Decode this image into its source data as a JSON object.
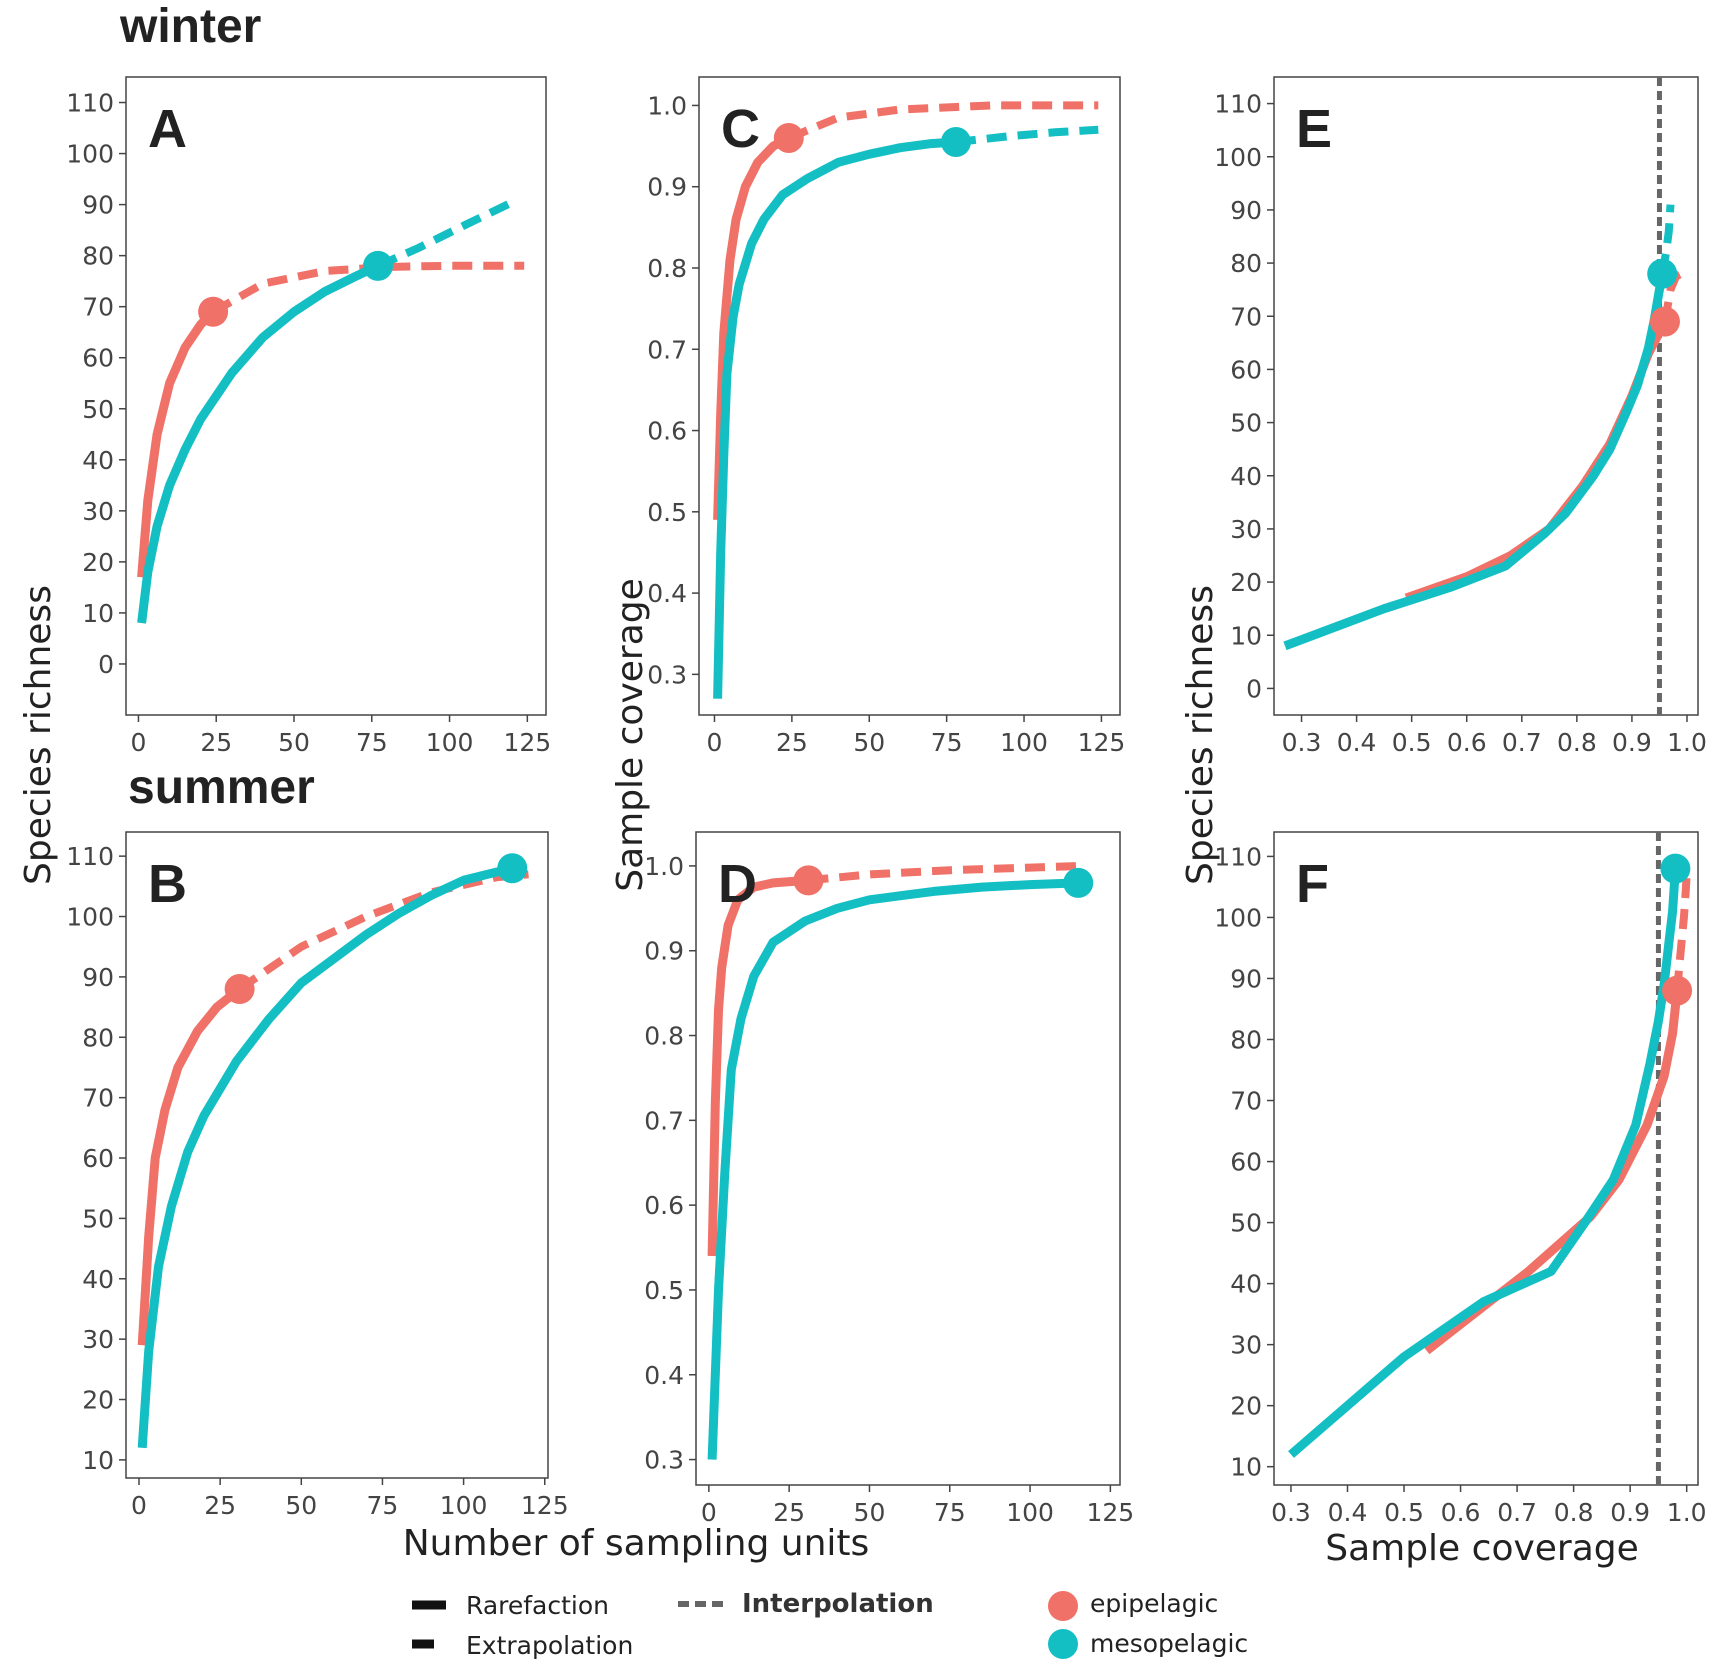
{
  "season_labels": {
    "winter": "winter",
    "summer": "summer"
  },
  "axis_titles": {
    "species_richness": "Species richness",
    "sample_coverage": "Sample coverage",
    "sampling_units": "Number of sampling units"
  },
  "legend": {
    "rarefaction": "Rarefaction",
    "extrapolation": "Extrapolation",
    "interpolation": "Interpolation",
    "epipelagic": "epipelagic",
    "mesopelagic": "mesopelagic"
  },
  "colors": {
    "epipelagic": "#F07167",
    "mesopelagic": "#14BFC4",
    "reference": "#666666"
  },
  "chart_data": [
    {
      "id": "A",
      "label": "A",
      "type": "line",
      "xlabel": "",
      "ylabel": "Species richness",
      "xlim": [
        -4,
        131
      ],
      "ylim": [
        -10,
        115
      ],
      "xticks": [
        0,
        25,
        50,
        75,
        100,
        125
      ],
      "yticks": [
        0,
        10,
        20,
        30,
        40,
        50,
        60,
        70,
        80,
        90,
        100,
        110
      ],
      "series": [
        {
          "name": "epipelagic",
          "rarefaction": [
            [
              1,
              17
            ],
            [
              3,
              32
            ],
            [
              6,
              45
            ],
            [
              10,
              55
            ],
            [
              15,
              62
            ],
            [
              20,
              66.5
            ],
            [
              24,
              69
            ]
          ],
          "extrapolation": [
            [
              24,
              69
            ],
            [
              40,
              74.5
            ],
            [
              60,
              77
            ],
            [
              80,
              77.8
            ],
            [
              100,
              78
            ],
            [
              124,
              78
            ]
          ],
          "observed": [
            24,
            69
          ]
        },
        {
          "name": "mesopelagic",
          "rarefaction": [
            [
              1,
              8
            ],
            [
              3,
              18
            ],
            [
              6,
              27
            ],
            [
              10,
              35
            ],
            [
              15,
              42
            ],
            [
              20,
              48
            ],
            [
              30,
              57
            ],
            [
              40,
              64
            ],
            [
              50,
              69
            ],
            [
              60,
              73
            ],
            [
              70,
              76
            ],
            [
              77,
              78
            ]
          ],
          "extrapolation": [
            [
              77,
              78
            ],
            [
              90,
              81.5
            ],
            [
              105,
              86
            ],
            [
              122,
              91
            ]
          ],
          "observed": [
            77,
            78
          ]
        }
      ]
    },
    {
      "id": "B",
      "label": "B",
      "type": "line",
      "xlabel": "",
      "ylabel": "",
      "xlim": [
        -4,
        126
      ],
      "ylim": [
        7,
        114
      ],
      "xticks": [
        0,
        25,
        50,
        75,
        100,
        125
      ],
      "yticks": [
        10,
        20,
        30,
        40,
        50,
        60,
        70,
        80,
        90,
        100,
        110
      ],
      "series": [
        {
          "name": "epipelagic",
          "rarefaction": [
            [
              1,
              29
            ],
            [
              3,
              47
            ],
            [
              5,
              60
            ],
            [
              8,
              68
            ],
            [
              12,
              75
            ],
            [
              18,
              81
            ],
            [
              24,
              85
            ],
            [
              31,
              88
            ]
          ],
          "extrapolation": [
            [
              31,
              88
            ],
            [
              50,
              95
            ],
            [
              70,
              100
            ],
            [
              90,
              104
            ],
            [
              110,
              106.5
            ],
            [
              120,
              107
            ]
          ],
          "observed": [
            31,
            88
          ]
        },
        {
          "name": "mesopelagic",
          "rarefaction": [
            [
              1,
              12
            ],
            [
              3,
              28
            ],
            [
              6,
              42
            ],
            [
              10,
              52
            ],
            [
              15,
              61
            ],
            [
              20,
              67
            ],
            [
              30,
              76
            ],
            [
              40,
              83
            ],
            [
              50,
              89
            ],
            [
              60,
              93
            ],
            [
              70,
              97
            ],
            [
              80,
              100.5
            ],
            [
              90,
              103.5
            ],
            [
              100,
              106
            ],
            [
              115,
              108
            ]
          ],
          "extrapolation": [],
          "observed": [
            115,
            108
          ]
        }
      ]
    },
    {
      "id": "C",
      "label": "C",
      "type": "line",
      "xlabel": "",
      "ylabel": "Sample coverage",
      "xlim": [
        -5,
        131
      ],
      "ylim": [
        0.25,
        1.035
      ],
      "xticks": [
        0,
        25,
        50,
        75,
        100,
        125
      ],
      "yticks": [
        0.3,
        0.4,
        0.5,
        0.6,
        0.7,
        0.8,
        0.9,
        1.0
      ],
      "series": [
        {
          "name": "epipelagic",
          "rarefaction": [
            [
              1,
              0.49
            ],
            [
              2,
              0.62
            ],
            [
              3,
              0.72
            ],
            [
              5,
              0.81
            ],
            [
              7,
              0.86
            ],
            [
              10,
              0.9
            ],
            [
              14,
              0.93
            ],
            [
              19,
              0.95
            ],
            [
              24,
              0.96
            ]
          ],
          "extrapolation": [
            [
              24,
              0.96
            ],
            [
              40,
              0.985
            ],
            [
              60,
              0.995
            ],
            [
              90,
              1.0
            ],
            [
              124,
              1.0
            ]
          ],
          "observed": [
            24,
            0.96
          ]
        },
        {
          "name": "mesopelagic",
          "rarefaction": [
            [
              1,
              0.27
            ],
            [
              2,
              0.45
            ],
            [
              3,
              0.57
            ],
            [
              4,
              0.67
            ],
            [
              6,
              0.74
            ],
            [
              8,
              0.78
            ],
            [
              12,
              0.83
            ],
            [
              16,
              0.86
            ],
            [
              22,
              0.89
            ],
            [
              30,
              0.91
            ],
            [
              40,
              0.93
            ],
            [
              50,
              0.94
            ],
            [
              60,
              0.948
            ],
            [
              70,
              0.953
            ],
            [
              78,
              0.955
            ]
          ],
          "extrapolation": [
            [
              78,
              0.955
            ],
            [
              95,
              0.962
            ],
            [
              110,
              0.967
            ],
            [
              124,
              0.97
            ]
          ],
          "observed": [
            78,
            0.955
          ]
        }
      ]
    },
    {
      "id": "D",
      "label": "D",
      "type": "line",
      "xlabel": "Number of sampling units",
      "ylabel": "",
      "xlim": [
        -4,
        128
      ],
      "ylim": [
        0.27,
        1.04
      ],
      "xticks": [
        0,
        25,
        50,
        75,
        100,
        125
      ],
      "yticks": [
        0.3,
        0.4,
        0.5,
        0.6,
        0.7,
        0.8,
        0.9,
        1.0
      ],
      "series": [
        {
          "name": "epipelagic",
          "rarefaction": [
            [
              1,
              0.54
            ],
            [
              2,
              0.72
            ],
            [
              3,
              0.83
            ],
            [
              4,
              0.88
            ],
            [
              6,
              0.93
            ],
            [
              9,
              0.96
            ],
            [
              14,
              0.975
            ],
            [
              20,
              0.98
            ],
            [
              31,
              0.983
            ]
          ],
          "extrapolation": [
            [
              31,
              0.983
            ],
            [
              50,
              0.99
            ],
            [
              75,
              0.995
            ],
            [
              100,
              0.998
            ],
            [
              117,
              1.0
            ]
          ],
          "observed": [
            31,
            0.983
          ]
        },
        {
          "name": "mesopelagic",
          "rarefaction": [
            [
              1,
              0.3
            ],
            [
              3,
              0.5
            ],
            [
              5,
              0.64
            ],
            [
              7,
              0.76
            ],
            [
              10,
              0.82
            ],
            [
              14,
              0.87
            ],
            [
              20,
              0.91
            ],
            [
              30,
              0.935
            ],
            [
              40,
              0.95
            ],
            [
              50,
              0.96
            ],
            [
              60,
              0.965
            ],
            [
              70,
              0.97
            ],
            [
              85,
              0.975
            ],
            [
              100,
              0.978
            ],
            [
              115,
              0.98
            ]
          ],
          "extrapolation": [],
          "observed": [
            115,
            0.98
          ]
        }
      ]
    },
    {
      "id": "E",
      "label": "E",
      "type": "line",
      "xlabel": "",
      "ylabel": "Species richness",
      "xlim": [
        0.25,
        1.02
      ],
      "ylim": [
        -5,
        115
      ],
      "xticks": [
        0.3,
        0.4,
        0.5,
        0.6,
        0.7,
        0.8,
        0.9,
        1.0
      ],
      "yticks": [
        0,
        10,
        20,
        30,
        40,
        50,
        60,
        70,
        80,
        90,
        100,
        110
      ],
      "reference_line_x": 0.95,
      "series": [
        {
          "name": "epipelagic",
          "rarefaction": [
            [
              0.49,
              17
            ],
            [
              0.6,
              21
            ],
            [
              0.68,
              25
            ],
            [
              0.75,
              30
            ],
            [
              0.81,
              38
            ],
            [
              0.86,
              46
            ],
            [
              0.9,
              55
            ],
            [
              0.93,
              63
            ],
            [
              0.96,
              69
            ]
          ],
          "extrapolation": [
            [
              0.96,
              69
            ],
            [
              0.97,
              75
            ],
            [
              0.98,
              77.5
            ],
            [
              0.99,
              78
            ]
          ],
          "observed": [
            0.96,
            69
          ]
        },
        {
          "name": "mesopelagic",
          "rarefaction": [
            [
              0.27,
              8
            ],
            [
              0.45,
              15
            ],
            [
              0.57,
              19
            ],
            [
              0.67,
              23
            ],
            [
              0.74,
              29
            ],
            [
              0.78,
              33
            ],
            [
              0.83,
              40
            ],
            [
              0.86,
              45
            ],
            [
              0.89,
              52
            ],
            [
              0.91,
              57
            ],
            [
              0.93,
              64
            ],
            [
              0.94,
              69
            ],
            [
              0.955,
              78
            ]
          ],
          "extrapolation": [
            [
              0.955,
              78
            ],
            [
              0.962,
              82
            ],
            [
              0.967,
              86
            ],
            [
              0.97,
              91
            ]
          ],
          "observed": [
            0.955,
            78
          ]
        }
      ]
    },
    {
      "id": "F",
      "label": "F",
      "type": "line",
      "xlabel": "Sample coverage",
      "ylabel": "",
      "xlim": [
        0.27,
        1.02
      ],
      "ylim": [
        7,
        114
      ],
      "xticks": [
        0.3,
        0.4,
        0.5,
        0.6,
        0.7,
        0.8,
        0.9,
        1.0
      ],
      "yticks": [
        10,
        20,
        30,
        40,
        50,
        60,
        70,
        80,
        90,
        100,
        110
      ],
      "reference_line_x": 0.95,
      "series": [
        {
          "name": "epipelagic",
          "rarefaction": [
            [
              0.54,
              29
            ],
            [
              0.72,
              42
            ],
            [
              0.83,
              51
            ],
            [
              0.88,
              57
            ],
            [
              0.93,
              66
            ],
            [
              0.96,
              74
            ],
            [
              0.975,
              81
            ],
            [
              0.983,
              88
            ]
          ],
          "extrapolation": [
            [
              0.983,
              88
            ],
            [
              0.99,
              95
            ],
            [
              0.995,
              100
            ],
            [
              0.998,
              104
            ],
            [
              1.0,
              107
            ]
          ],
          "observed": [
            0.983,
            88
          ]
        },
        {
          "name": "mesopelagic",
          "rarefaction": [
            [
              0.3,
              12
            ],
            [
              0.5,
              28
            ],
            [
              0.64,
              37
            ],
            [
              0.76,
              42
            ],
            [
              0.82,
              50
            ],
            [
              0.87,
              57
            ],
            [
              0.91,
              66
            ],
            [
              0.935,
              76
            ],
            [
              0.95,
              83
            ],
            [
              0.96,
              89
            ],
            [
              0.97,
              97
            ],
            [
              0.975,
              101
            ],
            [
              0.98,
              108
            ]
          ],
          "extrapolation": [],
          "observed": [
            0.98,
            108
          ]
        }
      ]
    }
  ]
}
